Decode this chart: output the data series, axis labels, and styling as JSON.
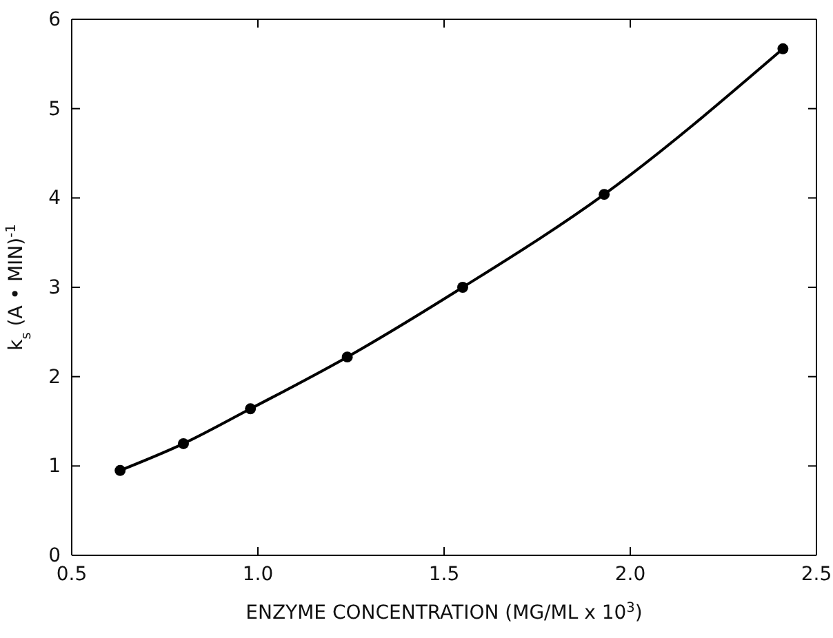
{
  "chart_data": {
    "type": "line",
    "xlabel": "ENZYME CONCENTRATION (MG/ML x 10$^{3}$)",
    "ylabel": "k$_{s}$  (A • MIN)$^{-1}$",
    "x": [
      0.63,
      0.8,
      0.98,
      1.24,
      1.55,
      1.93,
      2.41
    ],
    "series": [
      {
        "color": "#000000",
        "values": [
          0.95,
          1.25,
          1.64,
          2.22,
          3.0,
          4.04,
          5.67
        ]
      }
    ],
    "xlim": [
      0.5,
      2.5
    ],
    "xticks": [
      0.5,
      {
        "value": 1,
        "label": "1.0"
      },
      1.5,
      {
        "value": 2,
        "label": "2.0"
      },
      2.5
    ],
    "ylim": [
      0,
      6
    ],
    "yticks": [
      0,
      1,
      2,
      3,
      4,
      5,
      6
    ],
    "marker": "circle",
    "line_style": "solid",
    "grid": false
  }
}
